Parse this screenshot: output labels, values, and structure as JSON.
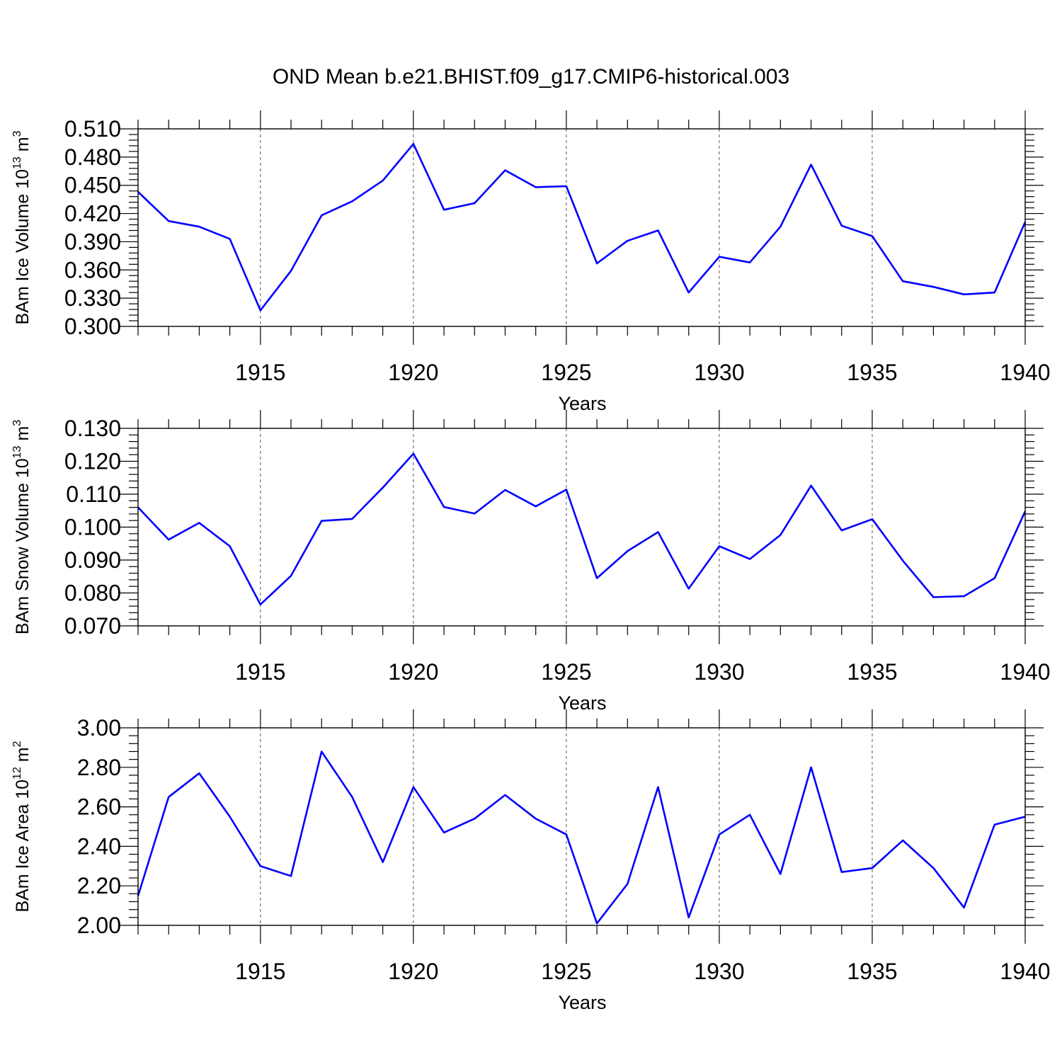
{
  "title": "OND Mean b.e21.BHIST.f09_g17.CMIP6-historical.003",
  "colors": {
    "line": "#0000ff",
    "grid": "#555555"
  },
  "chart_data": [
    {
      "type": "line",
      "ylabel": {
        "main": "BAm Ice Volume 10",
        "exp": "13",
        "unit": "m",
        "unit_exp": "3"
      },
      "xlabel": "Years",
      "xlim": [
        1911,
        1940
      ],
      "xticks": [
        1915,
        1920,
        1925,
        1930,
        1935,
        1940
      ],
      "xtick_labels": [
        "1915",
        "1920",
        "1925",
        "1930",
        "1935",
        "1940"
      ],
      "ylim": [
        0.3,
        0.51
      ],
      "yticks": [
        0.3,
        0.33,
        0.36,
        0.39,
        0.42,
        0.45,
        0.48,
        0.51
      ],
      "ytick_labels": [
        "0.300",
        "0.330",
        "0.360",
        "0.390",
        "0.420",
        "0.450",
        "0.480",
        "0.510"
      ],
      "grid": "vertical dashed at labeled years",
      "x": [
        1911,
        1912,
        1913,
        1914,
        1915,
        1916,
        1917,
        1918,
        1919,
        1920,
        1921,
        1922,
        1923,
        1924,
        1925,
        1926,
        1927,
        1928,
        1929,
        1930,
        1931,
        1932,
        1933,
        1934,
        1935,
        1936,
        1937,
        1938,
        1939,
        1940
      ],
      "values": [
        0.443,
        0.412,
        0.406,
        0.393,
        0.317,
        0.359,
        0.418,
        0.433,
        0.455,
        0.494,
        0.424,
        0.431,
        0.466,
        0.448,
        0.449,
        0.367,
        0.391,
        0.402,
        0.336,
        0.374,
        0.368,
        0.406,
        0.472,
        0.407,
        0.396,
        0.348,
        0.342,
        0.334,
        0.336,
        0.411
      ]
    },
    {
      "type": "line",
      "ylabel": {
        "main": "BAm Snow Volume 10",
        "exp": "13",
        "unit": "m",
        "unit_exp": "3"
      },
      "xlabel": "Years",
      "xlim": [
        1911,
        1940
      ],
      "xticks": [
        1915,
        1920,
        1925,
        1930,
        1935,
        1940
      ],
      "xtick_labels": [
        "1915",
        "1920",
        "1925",
        "1930",
        "1935",
        "1940"
      ],
      "ylim": [
        0.07,
        0.13
      ],
      "yticks": [
        0.07,
        0.08,
        0.09,
        0.1,
        0.11,
        0.12,
        0.13
      ],
      "ytick_labels": [
        "0.070",
        "0.080",
        "0.090",
        "0.100",
        "0.110",
        "0.120",
        "0.130"
      ],
      "grid": "vertical dashed at labeled years",
      "x": [
        1911,
        1912,
        1913,
        1914,
        1915,
        1916,
        1917,
        1918,
        1919,
        1920,
        1921,
        1922,
        1923,
        1924,
        1925,
        1926,
        1927,
        1928,
        1929,
        1930,
        1931,
        1932,
        1933,
        1934,
        1935,
        1936,
        1937,
        1938,
        1939,
        1940
      ],
      "values": [
        0.106,
        0.0962,
        0.1013,
        0.0942,
        0.0765,
        0.0852,
        0.1019,
        0.1025,
        0.112,
        0.1223,
        0.1061,
        0.1041,
        0.1113,
        0.1063,
        0.1114,
        0.0845,
        0.0927,
        0.0985,
        0.0813,
        0.0942,
        0.0903,
        0.0976,
        0.1126,
        0.099,
        0.1024,
        0.0898,
        0.0787,
        0.079,
        0.0845,
        0.1048
      ]
    },
    {
      "type": "line",
      "ylabel": {
        "main": "BAm Ice Area 10",
        "exp": "12",
        "unit": "m",
        "unit_exp": "2"
      },
      "xlabel": "Years",
      "xlim": [
        1911,
        1940
      ],
      "xticks": [
        1915,
        1920,
        1925,
        1930,
        1935,
        1940
      ],
      "xtick_labels": [
        "1915",
        "1920",
        "1925",
        "1930",
        "1935",
        "1940"
      ],
      "ylim": [
        2.0,
        3.0
      ],
      "yticks": [
        2.0,
        2.2,
        2.4,
        2.6,
        2.8,
        3.0
      ],
      "ytick_labels": [
        "2.00",
        "2.20",
        "2.40",
        "2.60",
        "2.80",
        "3.00"
      ],
      "grid": "vertical dashed at labeled years",
      "x": [
        1911,
        1912,
        1913,
        1914,
        1915,
        1916,
        1917,
        1918,
        1919,
        1920,
        1921,
        1922,
        1923,
        1924,
        1925,
        1926,
        1927,
        1928,
        1929,
        1930,
        1931,
        1932,
        1933,
        1934,
        1935,
        1936,
        1937,
        1938,
        1939,
        1940
      ],
      "values": [
        2.15,
        2.65,
        2.77,
        2.55,
        2.3,
        2.25,
        2.88,
        2.65,
        2.32,
        2.7,
        2.47,
        2.54,
        2.66,
        2.54,
        2.46,
        2.01,
        2.21,
        2.7,
        2.04,
        2.46,
        2.56,
        2.26,
        2.8,
        2.27,
        2.29,
        2.43,
        2.29,
        2.09,
        2.51,
        2.55
      ]
    }
  ]
}
